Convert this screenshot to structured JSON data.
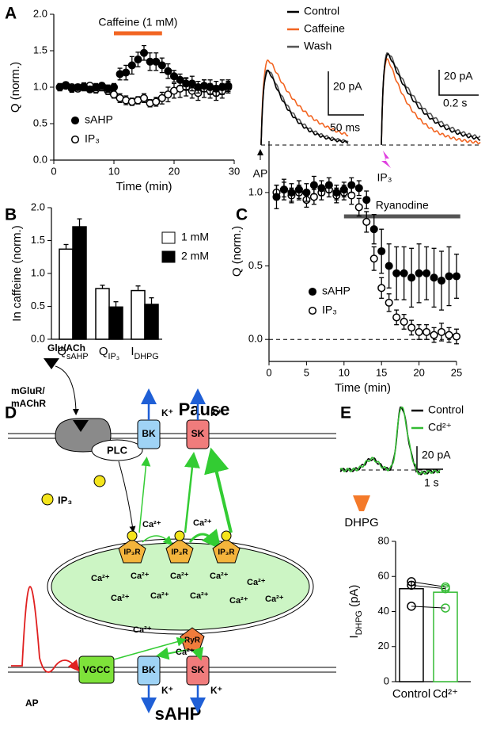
{
  "panels": [
    "A",
    "B",
    "C",
    "D",
    "E"
  ],
  "chart_data": [
    {
      "type": "scatter",
      "xlabel": "Time (min)",
      "ylabel": "Q (norm.)",
      "annotation": {
        "text": "Caffeine (1 mM)",
        "span": [
          10,
          18
        ],
        "color": "#f26522"
      },
      "x": [
        1,
        2,
        3,
        4,
        5,
        6,
        7,
        8,
        9,
        10,
        11,
        12,
        13,
        14,
        15,
        16,
        17,
        18,
        19,
        20,
        21,
        22,
        23,
        24,
        25,
        26,
        27,
        28,
        29
      ],
      "series": [
        {
          "name": "sAHP",
          "marker": "filled",
          "color": "#000000",
          "values": [
            1.0,
            1.02,
            0.98,
            1.0,
            1.01,
            0.97,
            1.0,
            1.02,
            0.98,
            1.0,
            1.18,
            1.2,
            1.3,
            1.38,
            1.47,
            1.35,
            1.35,
            1.3,
            1.22,
            1.15,
            1.1,
            1.05,
            1.05,
            1.0,
            1.02,
            1.0,
            0.98,
            1.0,
            1.02
          ],
          "errors": [
            0.05,
            0.04,
            0.05,
            0.04,
            0.05,
            0.04,
            0.05,
            0.04,
            0.05,
            0.05,
            0.08,
            0.1,
            0.12,
            0.1,
            0.1,
            0.12,
            0.12,
            0.1,
            0.1,
            0.08,
            0.08,
            0.08,
            0.1,
            0.08,
            0.08,
            0.1,
            0.1,
            0.1,
            0.08
          ]
        },
        {
          "name": "IP₃",
          "marker": "open",
          "color": "#000000",
          "values": [
            1.0,
            1.03,
            1.0,
            0.98,
            1.0,
            1.02,
            0.97,
            1.0,
            0.95,
            0.9,
            0.85,
            0.82,
            0.8,
            0.82,
            0.85,
            0.78,
            0.8,
            0.85,
            0.9,
            0.95,
            0.98,
            1.0,
            0.95,
            0.92,
            0.98,
            0.95,
            0.92,
            0.95,
            1.0
          ],
          "errors": [
            0.04,
            0.04,
            0.04,
            0.04,
            0.05,
            0.04,
            0.05,
            0.05,
            0.05,
            0.05,
            0.06,
            0.06,
            0.05,
            0.05,
            0.06,
            0.05,
            0.06,
            0.08,
            0.1,
            0.1,
            0.12,
            0.12,
            0.1,
            0.1,
            0.12,
            0.1,
            0.1,
            0.1,
            0.08
          ]
        }
      ],
      "xlim": [
        0,
        30
      ],
      "xticks": [
        0,
        10,
        20,
        30
      ],
      "ylim": [
        0,
        2
      ],
      "yticks": [
        {
          "value": 0,
          "label": "0.0"
        },
        {
          "value": 0.5,
          "label": "0.5"
        },
        {
          "value": 1,
          "label": "1.0"
        },
        {
          "value": 1.5,
          "label": "1.5"
        },
        {
          "value": 2,
          "label": "2.0"
        }
      ]
    },
    {
      "type": "bar",
      "ylabel": "In caffeine (norm.)",
      "categories": [
        {
          "text": "Q",
          "sub": "sAHP"
        },
        {
          "text": "Q",
          "sub": "IP₃"
        },
        {
          "text": "I",
          "sub": "DHPG"
        }
      ],
      "series": [
        {
          "name": "1 mM",
          "color": "#ffffff",
          "values": [
            1.37,
            0.77,
            0.74
          ],
          "errors": [
            0.07,
            0.05,
            0.07
          ]
        },
        {
          "name": "2 mM",
          "color": "#000000",
          "values": [
            1.71,
            0.49,
            0.53
          ],
          "errors": [
            0.12,
            0.08,
            0.1
          ]
        }
      ],
      "ylim": [
        0,
        2
      ],
      "yticks": [
        {
          "value": 0,
          "label": "0.0"
        },
        {
          "value": 0.5,
          "label": "0.5"
        },
        {
          "value": 1,
          "label": "1.0"
        },
        {
          "value": 1.5,
          "label": "1.5"
        },
        {
          "value": 2,
          "label": "2.0"
        }
      ]
    },
    {
      "type": "scatter",
      "xlabel": "Time (min)",
      "ylabel": "Q (norm.)",
      "annotation": {
        "text": "Ryanodine",
        "span": [
          10,
          25.5
        ],
        "color": "#555555"
      },
      "hline": 0,
      "x": [
        1,
        2,
        3,
        4,
        5,
        6,
        7,
        8,
        9,
        10,
        11,
        12,
        13,
        14,
        15,
        16,
        17,
        18,
        19,
        20,
        21,
        22,
        23,
        24,
        25
      ],
      "series": [
        {
          "name": "sAHP",
          "marker": "filled",
          "color": "#000000",
          "values": [
            0.97,
            1.02,
            1.0,
            1.02,
            1.0,
            1.05,
            1.03,
            1.05,
            1.0,
            1.02,
            1.05,
            1.03,
            0.95,
            0.75,
            0.6,
            0.5,
            0.45,
            0.45,
            0.42,
            0.45,
            0.45,
            0.42,
            0.4,
            0.43,
            0.43
          ],
          "errors": [
            0.08,
            0.07,
            0.06,
            0.06,
            0.06,
            0.06,
            0.05,
            0.05,
            0.05,
            0.05,
            0.05,
            0.05,
            0.06,
            0.1,
            0.15,
            0.15,
            0.18,
            0.18,
            0.2,
            0.2,
            0.18,
            0.2,
            0.2,
            0.2,
            0.15
          ]
        },
        {
          "name": "IP₃",
          "marker": "open",
          "color": "#000000",
          "values": [
            1.0,
            1.02,
            0.98,
            1.0,
            0.95,
            0.97,
            1.0,
            1.02,
            0.98,
            1.0,
            0.98,
            0.9,
            0.8,
            0.55,
            0.35,
            0.25,
            0.15,
            0.12,
            0.08,
            0.05,
            0.05,
            0.03,
            0.05,
            0.03,
            0.02
          ],
          "errors": [
            0.05,
            0.05,
            0.05,
            0.05,
            0.05,
            0.05,
            0.05,
            0.05,
            0.05,
            0.05,
            0.06,
            0.06,
            0.07,
            0.08,
            0.07,
            0.06,
            0.05,
            0.05,
            0.05,
            0.05,
            0.05,
            0.05,
            0.06,
            0.05,
            0.05
          ]
        }
      ],
      "xlim": [
        0,
        25
      ],
      "xticks": [
        0,
        5,
        10,
        15,
        20,
        25
      ],
      "ylim": [
        -0.15,
        1.35
      ],
      "yticks": [
        {
          "value": 0,
          "label": "0.0"
        },
        {
          "value": 0.5,
          "label": "0.5"
        },
        {
          "value": 1,
          "label": "1.0"
        }
      ]
    },
    {
      "type": "bar",
      "ylabel": {
        "text": "I",
        "sub": "DHPG",
        "unit": " (pA)"
      },
      "categories": [
        "Control",
        "Cd²⁺"
      ],
      "series": [
        {
          "colors": [
            "#000000",
            "#33bb33"
          ],
          "values": [
            53,
            51
          ],
          "errors": [
            4,
            3
          ],
          "points": [
            [
              57,
              55,
              43
            ],
            [
              54,
              53,
              42
            ]
          ]
        }
      ],
      "ylim": [
        0,
        80
      ],
      "yticks": [
        0,
        20,
        40,
        60,
        80
      ]
    }
  ],
  "traces_A": {
    "legend": [
      {
        "name": "Control",
        "color": "#000000"
      },
      {
        "name": "Caffeine",
        "color": "#f26522"
      },
      {
        "name": "Wash",
        "color": "#555555"
      }
    ],
    "scale1": [
      "20 pA",
      "50 ms"
    ],
    "scale2": [
      "20 pA",
      "0.2 s"
    ],
    "stim1": "AP",
    "stim2": "IP₃"
  },
  "traces_E": {
    "legend": [
      {
        "name": "Control",
        "color": "#000000"
      },
      {
        "name": "Cd²⁺",
        "color": "#33bb33"
      }
    ],
    "scale": [
      "20 pA",
      "1 s"
    ],
    "stim": "DHPG"
  },
  "diagram": {
    "top": "Pause",
    "bottom": "sAHP",
    "agonist": "Glu/ACh",
    "receptor": [
      "mGluR/",
      "mAChR"
    ],
    "plc": "PLC",
    "ip3_legend": "IP₃",
    "channels_top": [
      "BK",
      "SK"
    ],
    "channels_bottom": [
      "BK",
      "SK"
    ],
    "vgcc": "VGCC",
    "ryr": "RyR",
    "ip3r": [
      "IP₃R",
      "IP₃R",
      "IP₃R"
    ],
    "k_labels": [
      "K⁺",
      "K⁺",
      "K⁺",
      "K⁺"
    ],
    "ca_labels": [
      "Ca²⁺",
      "Ca²⁺",
      "Ca²⁺",
      "Ca²⁺",
      "Ca²⁺",
      "Ca²⁺",
      "Ca²⁺",
      "Ca²⁺",
      "Ca²⁺",
      "Ca²⁺",
      "Ca²⁺",
      "Ca²⁺",
      "Ca²⁺",
      "Ca²⁺"
    ],
    "ap": "AP"
  }
}
